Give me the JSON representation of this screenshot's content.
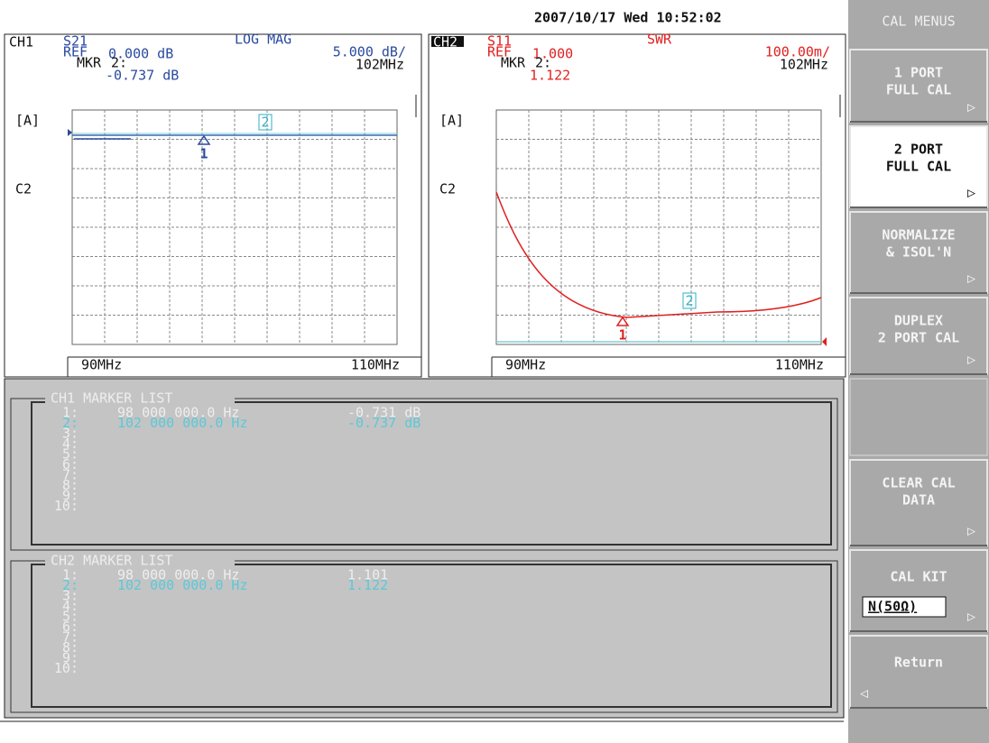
{
  "header": {
    "datetime": "2007/10/17 Wed 10:52:02"
  },
  "channels": [
    {
      "id": "CH1",
      "param": "S21",
      "format": "LOG MAG",
      "ref_label": "REF",
      "ref": "0.000 dB",
      "scale": "5.000 dB/",
      "marker_label": "MKR",
      "marker": "2:",
      "marker_freq": "102MHz",
      "marker_value": "-0.737 dB",
      "axis_tag": "[A]",
      "trace_tag": "C2",
      "start": "90MHz",
      "stop": "110MHz",
      "markers": [
        "1",
        "2"
      ]
    },
    {
      "id": "CH2",
      "param": "S11",
      "format": "SWR",
      "ref_label": "REF",
      "ref": "1.000",
      "scale": "100.00m/",
      "marker_label": "MKR",
      "marker": "2:",
      "marker_freq": "102MHz",
      "marker_value": "1.122",
      "axis_tag": "[A]",
      "trace_tag": "C2",
      "start": "90MHz",
      "stop": "110MHz",
      "markers": [
        "1",
        "2"
      ]
    }
  ],
  "marker_lists": [
    {
      "title": "CH1 MARKER LIST",
      "rows": [
        [
          "1:",
          "98 000 000.0 Hz",
          "-0.731 dB"
        ],
        [
          "2:",
          "102 000 000.0 Hz",
          "-0.737 dB"
        ],
        [
          "3:"
        ],
        [
          "4:"
        ],
        [
          "5:"
        ],
        [
          "6:"
        ],
        [
          "7:"
        ],
        [
          "8:"
        ],
        [
          "9:"
        ],
        [
          "10:"
        ]
      ]
    },
    {
      "title": "CH2 MARKER LIST",
      "rows": [
        [
          "1:",
          "98 000 000.0 Hz",
          "1.101"
        ],
        [
          "2:",
          "102 000 000.0 Hz",
          "1.122"
        ],
        [
          "3:"
        ],
        [
          "4:"
        ],
        [
          "5:"
        ],
        [
          "6:"
        ],
        [
          "7:"
        ],
        [
          "8:"
        ],
        [
          "9:"
        ],
        [
          "10:"
        ]
      ]
    }
  ],
  "softkeys": {
    "title": "CAL MENUS",
    "keys": [
      {
        "lines": [
          "1 PORT",
          "FULL CAL"
        ]
      },
      {
        "lines": [
          "2 PORT",
          "FULL CAL"
        ]
      },
      {
        "lines": [
          "NORMALIZE",
          "& ISOL'N"
        ]
      },
      {
        "lines": [
          "DUPLEX",
          "2 PORT CAL"
        ]
      },
      {
        "lines": [
          "CLEAR CAL",
          "DATA"
        ]
      },
      {
        "lines": [
          "CAL KIT"
        ],
        "value": "N(50Ω)"
      },
      {
        "lines": [
          "Return"
        ]
      }
    ]
  }
}
